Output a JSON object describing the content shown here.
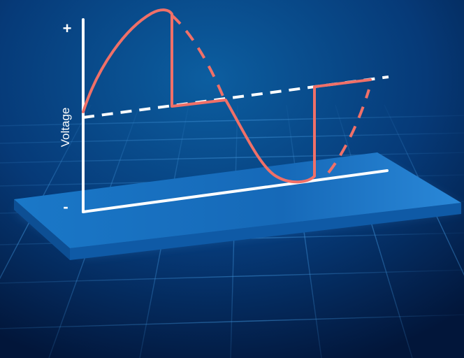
{
  "diagram": {
    "axis": {
      "y_label": "Voltage",
      "positive_sign": "+",
      "negative_sign": "-"
    },
    "colors": {
      "background_top": "#0c5ea0",
      "background_bottom": "#02163a",
      "grid": "#3d8fd4",
      "platform_top": "#1670c4",
      "platform_edge": "#0f5aa6",
      "axes": "#ffffff",
      "waveform": "#f07068",
      "reference_dashed": "#ffffff"
    },
    "icons": {
      "waveform_solid": "clipped-sine-wave",
      "waveform_dashed": "sine-continuation-dashed",
      "reference_line": "zero-voltage-dashed-line"
    }
  }
}
